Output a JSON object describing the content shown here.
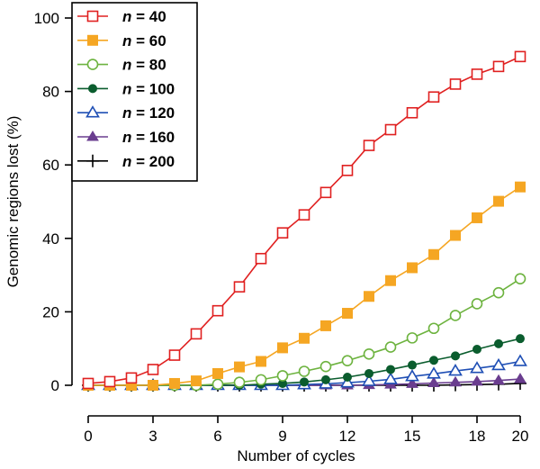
{
  "chart_data": {
    "type": "line",
    "xlabel": "Number of cycles",
    "ylabel": "Genomic regions lost (%)",
    "xlim": [
      0,
      20
    ],
    "ylim": [
      0,
      100
    ],
    "xticks": [
      "0",
      "3",
      "6",
      "9",
      "12",
      "15",
      "18",
      "20"
    ],
    "yticks": [
      "0",
      "20",
      "40",
      "60",
      "80",
      "100"
    ],
    "grid": false,
    "legend_position": "top-left",
    "x": [
      0,
      1,
      2,
      3,
      4,
      5,
      6,
      7,
      8,
      9,
      10,
      11,
      12,
      13,
      14,
      15,
      16,
      17,
      18,
      19,
      20
    ],
    "series": [
      {
        "name_prefix": "n",
        "name_suffix": " = 40",
        "color": "#e02020",
        "marker": "square-open",
        "values": [
          0.5,
          1,
          2,
          4.3,
          8.2,
          14,
          20.3,
          26.8,
          34.5,
          41.5,
          46.4,
          52.5,
          58.5,
          65.3,
          69.6,
          74.2,
          78.5,
          82,
          84.7,
          86.8,
          89.5
        ]
      },
      {
        "name_prefix": "n",
        "name_suffix": " = 60",
        "color": "#f5a623",
        "marker": "square-filled",
        "values": [
          0,
          0,
          0,
          0,
          0.5,
          1.2,
          3.2,
          5,
          6.5,
          10.2,
          12.8,
          16.2,
          19.6,
          24.2,
          28.5,
          32,
          35.6,
          40.8,
          45.6,
          50.1,
          54
        ]
      },
      {
        "name_prefix": "n",
        "name_suffix": " = 80",
        "color": "#6db33f",
        "marker": "circle-open",
        "values": [
          0,
          0,
          0,
          0,
          0,
          0,
          0.3,
          0.8,
          1.5,
          2.6,
          3.8,
          5.1,
          6.7,
          8.5,
          10.4,
          12.9,
          15.5,
          19,
          22.2,
          25.2,
          29
        ]
      },
      {
        "name_prefix": "n",
        "name_suffix": " = 100",
        "color": "#0b5d2e",
        "marker": "circle-filled",
        "values": [
          0,
          0,
          0,
          0,
          0,
          0,
          0,
          0,
          0.3,
          0.5,
          0.9,
          1.5,
          2.2,
          3.2,
          4.3,
          5.5,
          6.8,
          8,
          9.8,
          11.3,
          12.7
        ]
      },
      {
        "name_prefix": "n",
        "name_suffix": " = 120",
        "color": "#1f4fb5",
        "marker": "triangle-open",
        "values": [
          0,
          0,
          0,
          0,
          0,
          0,
          0,
          0,
          0,
          0,
          0.2,
          0.4,
          0.7,
          1.1,
          1.6,
          2.4,
          3.1,
          3.9,
          4.6,
          5.4,
          6.5
        ]
      },
      {
        "name_prefix": "n",
        "name_suffix": " = 160",
        "color": "#6a3d8f",
        "marker": "triangle-filled",
        "values": [
          0,
          0,
          0,
          0,
          0,
          0,
          0,
          0,
          0,
          0,
          0,
          0,
          0,
          0.1,
          0.2,
          0.4,
          0.6,
          0.8,
          1,
          1.3,
          1.7
        ]
      },
      {
        "name_prefix": "n",
        "name_suffix": " = 200",
        "color": "#000000",
        "marker": "plus",
        "values": [
          0,
          0,
          0,
          0,
          0,
          0,
          0,
          0,
          0,
          0,
          0,
          0,
          0,
          0,
          0,
          0,
          0,
          0.1,
          0.2,
          0.3,
          0.5
        ]
      }
    ]
  }
}
